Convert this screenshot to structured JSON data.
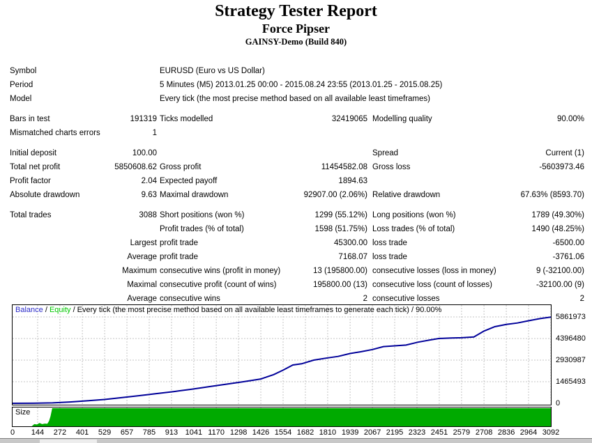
{
  "header": {
    "title": "Strategy Tester Report",
    "subtitle": "Force Pipser",
    "build": "GAINSY-Demo (Build 840)"
  },
  "report": {
    "rows": [
      {
        "gap": 0,
        "a": {
          "label": "Symbol"
        },
        "b": {
          "label": "EURUSD (Euro vs US Dollar)"
        }
      },
      {
        "gap": 0,
        "a": {
          "label": "Period"
        },
        "b": {
          "label": "5 Minutes (M5) 2013.01.25 00:00 - 2015.08.24 23:55 (2013.01.25 - 2015.08.25)"
        }
      },
      {
        "gap": 0,
        "a": {
          "label": "Model"
        },
        "b": {
          "label": "Every tick (the most precise method based on all available least timeframes)"
        }
      },
      {
        "gap": 9,
        "a": {
          "label": "Bars in test",
          "value": "191319"
        },
        "b": {
          "label": "Ticks modelled",
          "value": "32419065"
        },
        "c": {
          "label": "Modelling quality",
          "value": "90.00%"
        }
      },
      {
        "gap": 0,
        "a": {
          "label": "Mismatched charts errors",
          "value": "1"
        }
      },
      {
        "gap": 9,
        "a": {
          "label": "Initial deposit",
          "value": "100.00"
        },
        "c": {
          "label": "Spread",
          "value": "Current (1)"
        }
      },
      {
        "gap": 0,
        "a": {
          "label": "Total net profit",
          "value": "5850608.62"
        },
        "b": {
          "label": "Gross profit",
          "value": "11454582.08"
        },
        "c": {
          "label": "Gross loss",
          "value": "-5603973.46"
        }
      },
      {
        "gap": 0,
        "a": {
          "label": "Profit factor",
          "value": "2.04"
        },
        "b": {
          "label": "Expected payoff",
          "value": "1894.63"
        }
      },
      {
        "gap": 0,
        "a": {
          "label": "Absolute drawdown",
          "value": "9.63"
        },
        "b": {
          "label": "Maximal drawdown",
          "value": "92907.00 (2.06%)"
        },
        "c": {
          "label": "Relative drawdown",
          "value": "67.63% (8593.70)"
        }
      },
      {
        "gap": 9,
        "a": {
          "label": "Total trades",
          "value": "3088"
        },
        "b": {
          "label": "Short positions (won %)",
          "value": "1299 (55.12%)"
        },
        "c": {
          "label": "Long positions (won %)",
          "value": "1789 (49.30%)"
        }
      },
      {
        "gap": 0,
        "b": {
          "label": "Profit trades (% of total)",
          "value": "1598 (51.75%)"
        },
        "c": {
          "label": "Loss trades (% of total)",
          "value": "1490 (48.25%)"
        }
      },
      {
        "gap": 0,
        "a": {
          "value": "Largest"
        },
        "b": {
          "label": "profit trade",
          "value": "45300.00"
        },
        "c": {
          "label": "loss trade",
          "value": "-6500.00"
        }
      },
      {
        "gap": 0,
        "a": {
          "value": "Average"
        },
        "b": {
          "label": "profit trade",
          "value": "7168.07"
        },
        "c": {
          "label": "loss trade",
          "value": "-3761.06"
        }
      },
      {
        "gap": 0,
        "a": {
          "value": "Maximum"
        },
        "b": {
          "label": "consecutive wins (profit in money)",
          "value": "13 (195800.00)"
        },
        "c": {
          "label": "consecutive losses (loss in money)",
          "value": "9 (-32100.00)"
        }
      },
      {
        "gap": 0,
        "a": {
          "value": "Maximal"
        },
        "b": {
          "label": "consecutive profit (count of wins)",
          "value": "195800.00 (13)"
        },
        "c": {
          "label": "consecutive loss (count of losses)",
          "value": "-32100.00 (9)"
        }
      },
      {
        "gap": 0,
        "a": {
          "value": "Average"
        },
        "b": {
          "label": "consecutive wins",
          "value": "2"
        },
        "c": {
          "label": "consecutive losses",
          "value": "2"
        }
      }
    ]
  },
  "chart_data": {
    "type": "line",
    "legend_items": [
      {
        "text": "Balance",
        "color": "#2a2ac8"
      },
      {
        "text": " / ",
        "color": "#000000"
      },
      {
        "text": "Equity",
        "color": "#00c800"
      },
      {
        "text": " / Every tick (the most precise method based on all available least timeframes to generate each tick) / 90.00%",
        "color": "#000000"
      }
    ],
    "x_range": [
      0,
      3092
    ],
    "y_range": [
      0,
      5861973
    ],
    "grid": "dashed",
    "legend_position": "top-left-inside",
    "x_ticks": [
      0,
      144,
      272,
      401,
      529,
      657,
      785,
      913,
      1041,
      1170,
      1298,
      1426,
      1554,
      1682,
      1810,
      1939,
      2067,
      2195,
      2323,
      2451,
      2579,
      2708,
      2836,
      2964,
      3092
    ],
    "y_ticks": [
      0,
      1465493,
      2930987,
      4396480,
      5861973
    ],
    "series": [
      {
        "name": "Balance",
        "color": "#000099",
        "points": [
          [
            0,
            100
          ],
          [
            120,
            5000
          ],
          [
            230,
            30000
          ],
          [
            330,
            90000
          ],
          [
            430,
            170000
          ],
          [
            529,
            260000
          ],
          [
            630,
            390000
          ],
          [
            729,
            520000
          ],
          [
            830,
            660000
          ],
          [
            929,
            800000
          ],
          [
            1030,
            960000
          ],
          [
            1129,
            1130000
          ],
          [
            1230,
            1300000
          ],
          [
            1330,
            1470000
          ],
          [
            1426,
            1650000
          ],
          [
            1500,
            1950000
          ],
          [
            1554,
            2250000
          ],
          [
            1610,
            2600000
          ],
          [
            1660,
            2680000
          ],
          [
            1730,
            2930000
          ],
          [
            1810,
            3080000
          ],
          [
            1870,
            3180000
          ],
          [
            1939,
            3380000
          ],
          [
            2000,
            3500000
          ],
          [
            2067,
            3650000
          ],
          [
            2130,
            3850000
          ],
          [
            2195,
            3900000
          ],
          [
            2260,
            3950000
          ],
          [
            2330,
            4150000
          ],
          [
            2400,
            4300000
          ],
          [
            2451,
            4400000
          ],
          [
            2520,
            4430000
          ],
          [
            2579,
            4450000
          ],
          [
            2650,
            4500000
          ],
          [
            2708,
            4900000
          ],
          [
            2770,
            5200000
          ],
          [
            2836,
            5350000
          ],
          [
            2900,
            5450000
          ],
          [
            2964,
            5600000
          ],
          [
            3030,
            5750000
          ],
          [
            3092,
            5850609
          ]
        ]
      }
    ],
    "size_panel": {
      "label": "Size",
      "type": "area",
      "color": "#00aa00",
      "points": [
        [
          0,
          0
        ],
        [
          110,
          0
        ],
        [
          125,
          0.12
        ],
        [
          140,
          0.1
        ],
        [
          155,
          0.18
        ],
        [
          170,
          0.12
        ],
        [
          185,
          0.15
        ],
        [
          200,
          0.14
        ],
        [
          210,
          0.3
        ],
        [
          218,
          0.55
        ],
        [
          228,
          1
        ],
        [
          3092,
          1
        ]
      ]
    },
    "grid_color": "#c4c4c4"
  }
}
